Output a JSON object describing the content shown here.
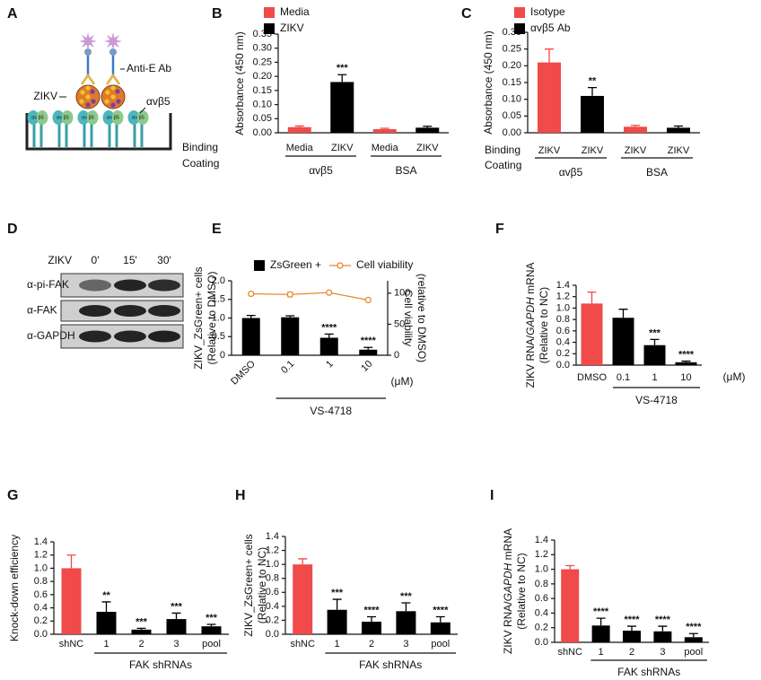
{
  "diagram": {
    "label": "A",
    "antibody": "Anti-E Ab",
    "virus": "ZIKV",
    "receptor": "αvβ5",
    "receptor_subunits": "αv β5"
  },
  "blot": {
    "label": "D",
    "treatment": "ZIKV",
    "timepoints": [
      "0'",
      "15'",
      "30'"
    ],
    "rows": [
      "α-pi-FAK",
      "α-FAK",
      "α-GAPDH"
    ]
  },
  "chart_data": [
    {
      "type": "bar",
      "label": "B",
      "ylabel": [
        "Absorbance (450 nm)"
      ],
      "ylim": [
        0,
        0.35
      ],
      "yticks": [
        {
          "value": 0,
          "label": "0.00"
        },
        0.05,
        {
          "value": 0.1,
          "label": "0.10"
        },
        0.15,
        {
          "value": 0.2,
          "label": "0.20"
        },
        0.25,
        {
          "value": 0.3,
          "label": "0.30"
        },
        0.35
      ],
      "categories": [
        "Media",
        "ZIKV",
        "Media",
        "ZIKV"
      ],
      "row_labels": [
        "Binding",
        "Coating"
      ],
      "group_labels": [
        "αvβ5",
        "BSA"
      ],
      "series": [
        {
          "name": "Media",
          "color": "#f04a4a",
          "values": [
            0.02,
            null,
            0.013,
            null
          ],
          "errors": [
            0.004,
            null,
            0.003,
            null
          ]
        },
        {
          "name": "ZIKV",
          "color": "#000000",
          "values": [
            null,
            0.18,
            null,
            0.018
          ],
          "errors": [
            null,
            0.026,
            null,
            0.005
          ],
          "annotations": [
            null,
            "***",
            null,
            null
          ]
        }
      ]
    },
    {
      "type": "bar",
      "label": "C",
      "ylabel": [
        "Absorbance (450 nm)"
      ],
      "ylim": [
        0,
        0.3
      ],
      "yticks": [
        {
          "value": 0,
          "label": "0.00"
        },
        0.05,
        {
          "value": 0.1,
          "label": "0.10"
        },
        0.15,
        {
          "value": 0.2,
          "label": "0.20"
        },
        0.25,
        {
          "value": 0.3,
          "label": "0.30"
        }
      ],
      "categories": [
        "ZIKV",
        "ZIKV",
        "ZIKV",
        "ZIKV"
      ],
      "row_labels": [
        "Binding",
        "Coating"
      ],
      "group_labels": [
        "αvβ5",
        "BSA"
      ],
      "series": [
        {
          "name": "Isotype",
          "color": "#f04a4a",
          "values": [
            0.21,
            null,
            0.018,
            null
          ],
          "errors": [
            0.04,
            null,
            0.004,
            null
          ]
        },
        {
          "name": "αvβ5 Ab",
          "color": "#000000",
          "values": [
            null,
            0.11,
            null,
            0.015
          ],
          "errors": [
            null,
            0.025,
            null,
            0.005
          ],
          "annotations": [
            null,
            "**",
            null,
            null
          ]
        }
      ]
    },
    {
      "type": "bar",
      "label": "E",
      "ylabel": [
        "ZIKV_ZsGreen+ cells",
        "(Relative to DMSO)"
      ],
      "y2label": [
        "Cell viability",
        "(relative to DMSO)"
      ],
      "ylim": [
        0,
        2
      ],
      "yticks": [
        0,
        0.5,
        {
          "value": 1,
          "label": "1.0"
        },
        1.5,
        {
          "value": 2,
          "label": "2.0"
        }
      ],
      "y2lim": [
        0,
        120
      ],
      "y2ticks": [
        0,
        50,
        100
      ],
      "categories": [
        "DMSO",
        "0.1",
        "1",
        "10"
      ],
      "unit": "(μM)",
      "group_label": "VS-4718",
      "series": [
        {
          "name": "ZsGreen +",
          "color": "#000000",
          "values": [
            1,
            1.02,
            0.47,
            0.15
          ],
          "errors": [
            0.07,
            0.04,
            0.1,
            0.06
          ],
          "annotations": [
            null,
            null,
            "****",
            "****"
          ]
        },
        {
          "name": "Cell viability",
          "color": "#e8892b",
          "type": "line",
          "axis": "y2",
          "values": [
            99,
            98,
            101,
            89
          ],
          "errors": [
            null,
            4,
            null,
            null
          ]
        }
      ]
    },
    {
      "type": "bar",
      "label": "F",
      "ylabel": [
        [
          "ZIKV RNA/",
          "GAPDH",
          " mRNA"
        ],
        "(Relative to NC)"
      ],
      "ylim": [
        0,
        1.4
      ],
      "yticks": [
        {
          "value": 0,
          "label": "0.0"
        },
        0.2,
        0.4,
        0.6,
        0.8,
        {
          "value": 1,
          "label": "1.0"
        },
        1.2,
        1.4
      ],
      "categories": [
        "DMSO",
        "0.1",
        "1",
        "10"
      ],
      "unit": "(μM)",
      "group_label": "VS-4718",
      "values": [
        1.08,
        0.83,
        0.35,
        0.05
      ],
      "errors": [
        0.2,
        0.15,
        0.1,
        0.02
      ],
      "annotations": [
        null,
        null,
        "***",
        "****"
      ],
      "colors": [
        "#f04a4a",
        "#000000",
        "#000000",
        "#000000"
      ]
    },
    {
      "type": "bar",
      "label": "G",
      "ylabel": [
        "Knock-down efficiency"
      ],
      "ylim": [
        0,
        1.4
      ],
      "yticks": [
        {
          "value": 0,
          "label": "0.0"
        },
        0.2,
        0.4,
        0.6,
        0.8,
        {
          "value": 1,
          "label": "1.0"
        },
        1.2,
        1.4
      ],
      "categories": [
        "shNC",
        "1",
        "2",
        "3",
        "pool"
      ],
      "group_label": "FAK shRNAs",
      "values": [
        1,
        0.34,
        0.07,
        0.23,
        0.12
      ],
      "errors": [
        0.2,
        0.15,
        0.02,
        0.09,
        0.03
      ],
      "annotations": [
        null,
        "**",
        "***",
        "***",
        "***"
      ],
      "colors": [
        "#f04a4a",
        "#000000",
        "#000000",
        "#000000",
        "#000000"
      ]
    },
    {
      "type": "bar",
      "label": "H",
      "ylabel": [
        "ZIKV_ZsGreen+ cells",
        "(Relative to NC)"
      ],
      "ylim": [
        0,
        1.4
      ],
      "yticks": [
        {
          "value": 0,
          "label": "0.0"
        },
        0.2,
        0.4,
        0.6,
        0.8,
        {
          "value": 1,
          "label": "1.0"
        },
        1.2,
        1.4
      ],
      "categories": [
        "shNC",
        "1",
        "2",
        "3",
        "pool"
      ],
      "group_label": "FAK shRNAs",
      "values": [
        1,
        0.35,
        0.18,
        0.33,
        0.17
      ],
      "errors": [
        0.08,
        0.15,
        0.07,
        0.12,
        0.08
      ],
      "annotations": [
        null,
        "***",
        "****",
        "***",
        "****"
      ],
      "colors": [
        "#f04a4a",
        "#000000",
        "#000000",
        "#000000",
        "#000000"
      ]
    },
    {
      "type": "bar",
      "label": "I",
      "ylabel": [
        [
          "ZIKV RNA/",
          "GAPDH",
          " mRNA"
        ],
        "(Relative to NC)"
      ],
      "ylim": [
        0,
        1.4
      ],
      "yticks": [
        {
          "value": 0,
          "label": "0.0"
        },
        0.2,
        0.4,
        0.6,
        0.8,
        {
          "value": 1,
          "label": "1.0"
        },
        1.2,
        1.4
      ],
      "categories": [
        "shNC",
        "1",
        "2",
        "3",
        "pool"
      ],
      "group_label": "FAK shRNAs",
      "values": [
        1,
        0.23,
        0.16,
        0.15,
        0.07
      ],
      "errors": [
        0.05,
        0.1,
        0.06,
        0.07,
        0.05
      ],
      "annotations": [
        null,
        "****",
        "****",
        "****",
        "****"
      ],
      "colors": [
        "#f04a4a",
        "#000000",
        "#000000",
        "#000000",
        "#000000"
      ]
    }
  ]
}
